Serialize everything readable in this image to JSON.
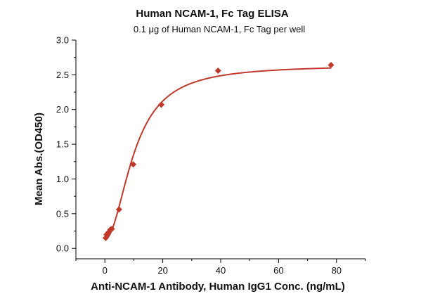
{
  "chart_data": {
    "type": "scatter",
    "title": "Human NCAM-1, Fc Tag ELISA",
    "subtitle": "0.1 μg of Human NCAM-1, Fc Tag per well",
    "xlabel": "Anti-NCAM-1 Antibody, Human IgG1 Conc. (ng/mL)",
    "ylabel": "Mean Abs.(OD450)",
    "xlim": [
      -10,
      90
    ],
    "ylim": [
      -0.15,
      3.0
    ],
    "x_ticks": [
      0,
      20,
      40,
      60,
      80
    ],
    "y_ticks": [
      0.0,
      0.5,
      1.0,
      1.5,
      2.0,
      2.5,
      3.0
    ],
    "x_tick_labels": [
      "0",
      "20",
      "40",
      "60",
      "80"
    ],
    "y_tick_labels": [
      "0.0",
      "0.5",
      "1.0",
      "1.5",
      "2.0",
      "2.5",
      "3.0"
    ],
    "grid": false,
    "series": [
      {
        "marker": "diamond",
        "color": "#c0392b",
        "points": [
          {
            "x": 0.3,
            "y": 0.15
          },
          {
            "x": 0.6,
            "y": 0.2
          },
          {
            "x": 1.2,
            "y": 0.23
          },
          {
            "x": 1.9,
            "y": 0.27
          },
          {
            "x": 2.4,
            "y": 0.28
          },
          {
            "x": 4.9,
            "y": 0.56
          },
          {
            "x": 9.8,
            "y": 1.21
          },
          {
            "x": 19.5,
            "y": 2.07
          },
          {
            "x": 39.1,
            "y": 2.56
          },
          {
            "x": 78.1,
            "y": 2.64
          }
        ]
      }
    ],
    "fit_curve": {
      "model": "4PL",
      "color": "#c0392b",
      "bottom": 0.13,
      "top": 2.64,
      "ec50": 10.2,
      "hill": 2.0
    }
  },
  "colors": {
    "series": "#c0392b",
    "axis": "#000000",
    "text": "#111111"
  }
}
